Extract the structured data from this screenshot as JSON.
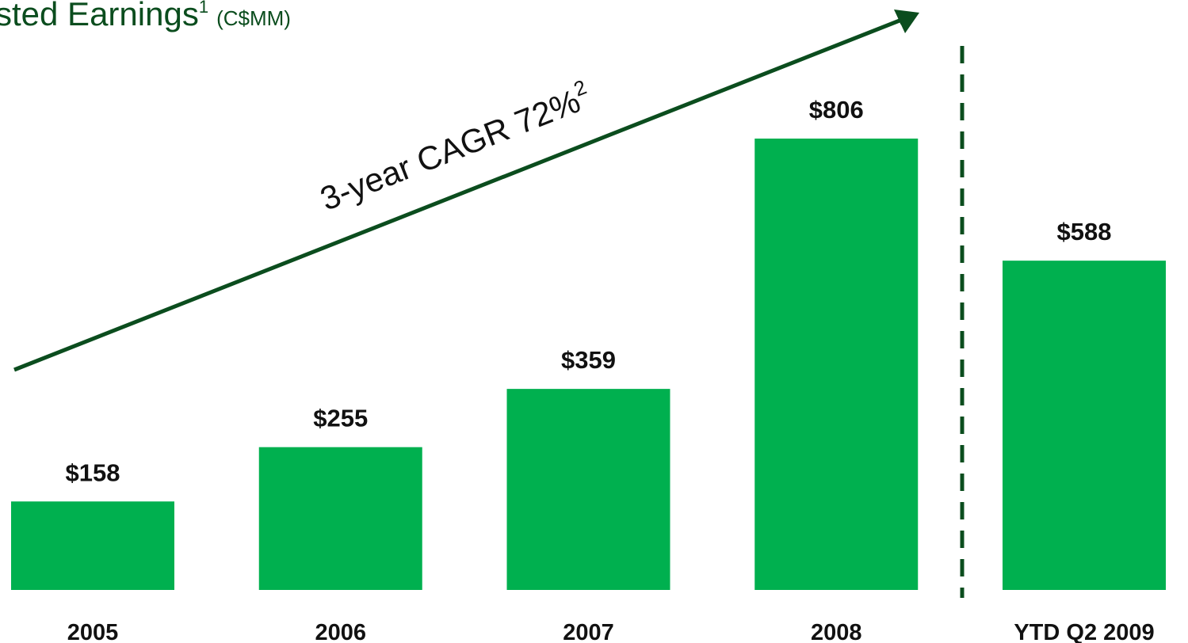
{
  "chart_data": {
    "type": "bar",
    "title": "sted Earnings",
    "title_superscript": "1",
    "title_unit": "(C$MM)",
    "annotation": "3-year CAGR 72%",
    "annotation_superscript": "2",
    "categories": [
      "2005",
      "2006",
      "2007",
      "2008",
      "YTD Q2 2009"
    ],
    "values": [
      158,
      255,
      359,
      806,
      588
    ],
    "value_labels": [
      "$158",
      "$255",
      "$359",
      "$806",
      "$588"
    ],
    "color": "#00b04f"
  }
}
